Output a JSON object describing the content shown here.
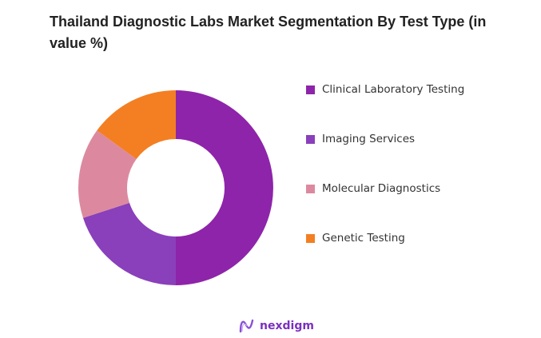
{
  "chart_data": {
    "type": "pie",
    "variant": "donut",
    "title": "Thailand Diagnostic Labs Market Segmentation By Test Type (in value %)",
    "categories": [
      "Clinical Laboratory Testing",
      "Imaging Services",
      "Molecular Diagnostics",
      "Genetic Testing"
    ],
    "values": [
      50,
      20,
      15,
      15
    ],
    "colors": [
      "#8E24AA",
      "#8A3FBB",
      "#DC89A0",
      "#F37F22"
    ],
    "legend": "right"
  },
  "brand": {
    "name": "nexdigm",
    "color": "#7b2fbf"
  }
}
